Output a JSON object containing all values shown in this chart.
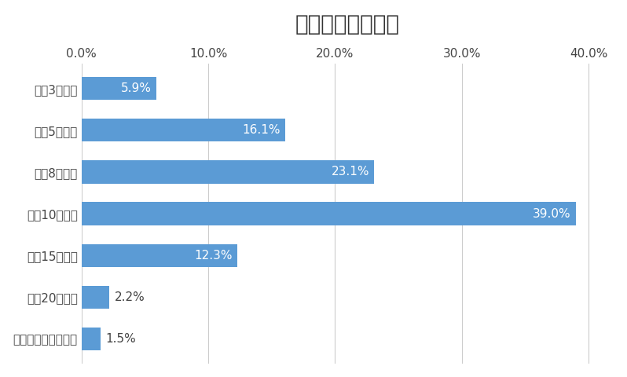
{
  "title": "駅徒歩の許容範囲",
  "categories": [
    "特に気にしていない",
    "徒歩20分以内",
    "徒歩15分以内",
    "徒歩10分以内",
    "徒歩8分以内",
    "徒歩5分以内",
    "徒歩3分以内"
  ],
  "values": [
    1.5,
    2.2,
    12.3,
    39.0,
    23.1,
    16.1,
    5.9
  ],
  "labels": [
    "1.5%",
    "2.2%",
    "12.3%",
    "39.0%",
    "23.1%",
    "16.1%",
    "5.9%"
  ],
  "label_inside": [
    false,
    false,
    true,
    true,
    true,
    true,
    true
  ],
  "bar_color": "#5b9bd5",
  "background_color": "#ffffff",
  "title_fontsize": 20,
  "label_fontsize": 11,
  "tick_fontsize": 11,
  "xlim": [
    0,
    42
  ],
  "xticks": [
    0,
    10,
    20,
    30,
    40
  ],
  "xtick_labels": [
    "0.0%",
    "10.0%",
    "20.0%",
    "30.0%",
    "40.0%"
  ]
}
